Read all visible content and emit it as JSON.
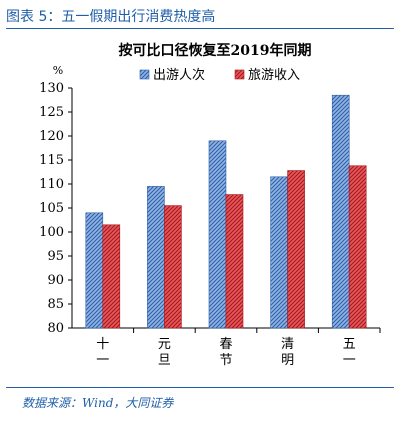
{
  "figure": {
    "title": "图表 5：五一假期出行消费热度高",
    "source": "数据来源：Wind，大同证券"
  },
  "chart_data": {
    "type": "bar",
    "title": "按可比口径恢复至2019年同期",
    "ylabel": "%",
    "ylim": [
      80,
      130
    ],
    "yticks": [
      80,
      85,
      90,
      95,
      100,
      105,
      110,
      115,
      120,
      125,
      130
    ],
    "categories": [
      "十一",
      "元旦",
      "春节",
      "清明",
      "五一"
    ],
    "legend_position": "top-right",
    "series": [
      {
        "name": "出游人次",
        "color": "#4a7fc8",
        "values": [
          104.0,
          109.5,
          119.0,
          111.5,
          128.5
        ]
      },
      {
        "name": "旅游收入",
        "color": "#d8262b",
        "values": [
          101.5,
          105.5,
          107.8,
          112.8,
          113.8
        ]
      }
    ]
  }
}
